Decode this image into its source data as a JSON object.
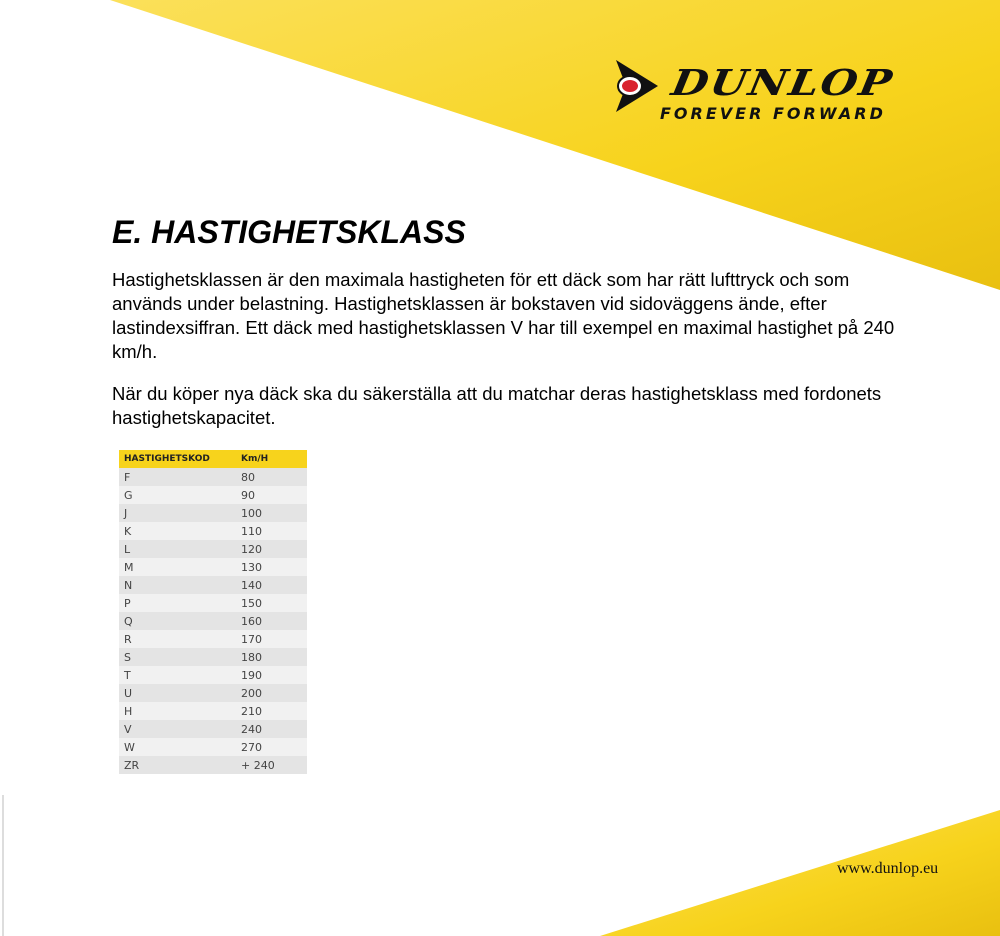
{
  "logo": {
    "brand": "DUNLOP",
    "tagline": "FOREVER FORWARD",
    "emblem_letter": "D"
  },
  "colors": {
    "yellow": "#f7d31c",
    "red": "#d9232e"
  },
  "title": "E. HASTIGHETSKLASS",
  "paragraph1": "Hastighetsklassen är den maximala hastigheten för ett däck som har rätt lufttryck och som används under belastning. Hastighetsklassen är bokstaven vid sidoväggens ände, efter lastindexsiffran. Ett däck med hastighetsklassen V har till exempel en maximal hastighet på 240 km/h.",
  "paragraph2": "När du köper nya däck ska du säkerställa att du matchar deras hastighetsklass med fordonets hastighetskapacitet.",
  "table": {
    "headers": [
      "HASTIGHETSKOD",
      "Km/H"
    ],
    "rows": [
      [
        "F",
        "80"
      ],
      [
        "G",
        "90"
      ],
      [
        "J",
        "100"
      ],
      [
        "K",
        "110"
      ],
      [
        "L",
        "120"
      ],
      [
        "M",
        "130"
      ],
      [
        "N",
        "140"
      ],
      [
        "P",
        "150"
      ],
      [
        "Q",
        "160"
      ],
      [
        "R",
        "170"
      ],
      [
        "S",
        "180"
      ],
      [
        "T",
        "190"
      ],
      [
        "U",
        "200"
      ],
      [
        "H",
        "210"
      ],
      [
        "V",
        "240"
      ],
      [
        "W",
        "270"
      ],
      [
        "ZR",
        "+ 240"
      ]
    ]
  },
  "footer_url": "www.dunlop.eu"
}
